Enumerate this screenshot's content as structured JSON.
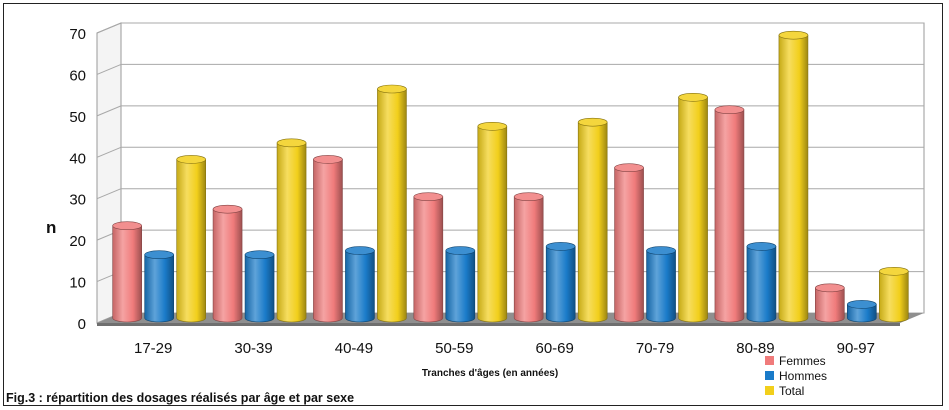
{
  "figure": {
    "caption": "Fig.3 : répartition des dosages réalisés par âge et par sexe"
  },
  "chart_data": {
    "type": "bar",
    "title": "",
    "xlabel": "Tranches d'âges (en années)",
    "ylabel": "n",
    "ylim": [
      0,
      70
    ],
    "yticks": [
      0,
      10,
      20,
      30,
      40,
      50,
      60,
      70
    ],
    "grid": true,
    "legend_position": "bottom-right",
    "categories": [
      "17-29",
      "30-39",
      "40-49",
      "50-59",
      "60-69",
      "70-79",
      "80-89",
      "90-97"
    ],
    "series": [
      {
        "name": "Femmes",
        "color": "#F07B7B",
        "values": [
          23,
          27,
          39,
          30,
          30,
          37,
          51,
          8
        ]
      },
      {
        "name": "Hommes",
        "color": "#1A7BC9",
        "values": [
          16,
          16,
          17,
          17,
          18,
          17,
          18,
          4
        ]
      },
      {
        "name": "Total",
        "color": "#F2CF1B",
        "values": [
          39,
          43,
          56,
          47,
          48,
          54,
          69,
          12
        ]
      }
    ]
  }
}
